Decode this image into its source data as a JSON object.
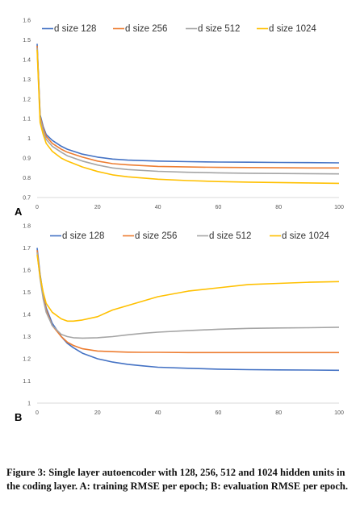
{
  "colors": [
    "#4472C4",
    "#ED7D31",
    "#A5A5A5",
    "#FFC000"
  ],
  "chart_data": [
    {
      "type": "line",
      "panel_label": "A",
      "xlim": [
        0,
        100
      ],
      "ylim": [
        0.7,
        1.6
      ],
      "xticks": [
        0,
        20,
        40,
        60,
        80,
        100
      ],
      "yticks": [
        0.7,
        0.8,
        0.9,
        1,
        1.1,
        1.2,
        1.3,
        1.4,
        1.5,
        1.6
      ],
      "ytick_labels": [
        "0.7",
        "0.8",
        "0.9",
        "1",
        "1.1",
        "1.2",
        "1.3",
        "1.4",
        "1.5",
        "1.6"
      ],
      "grid": false,
      "legend_position": "top",
      "x": [
        0,
        1,
        2,
        3,
        5,
        8,
        10,
        15,
        20,
        25,
        30,
        40,
        50,
        60,
        70,
        80,
        90,
        100
      ],
      "series": [
        {
          "name": "d size 128",
          "values": [
            1.48,
            1.12,
            1.06,
            1.02,
            0.99,
            0.96,
            0.945,
            0.92,
            0.905,
            0.895,
            0.89,
            0.885,
            0.882,
            0.88,
            0.879,
            0.878,
            0.877,
            0.876
          ]
        },
        {
          "name": "d size 256",
          "values": [
            1.47,
            1.11,
            1.05,
            1.01,
            0.975,
            0.945,
            0.93,
            0.905,
            0.885,
            0.872,
            0.866,
            0.858,
            0.855,
            0.853,
            0.852,
            0.851,
            0.85,
            0.85
          ]
        },
        {
          "name": "d size 512",
          "values": [
            1.46,
            1.1,
            1.04,
            0.995,
            0.96,
            0.93,
            0.912,
            0.885,
            0.865,
            0.85,
            0.842,
            0.833,
            0.828,
            0.825,
            0.823,
            0.822,
            0.821,
            0.82
          ]
        },
        {
          "name": "d size 1024",
          "values": [
            1.45,
            1.08,
            1.02,
            0.975,
            0.935,
            0.9,
            0.885,
            0.855,
            0.832,
            0.815,
            0.805,
            0.793,
            0.786,
            0.781,
            0.778,
            0.776,
            0.774,
            0.772
          ]
        }
      ]
    },
    {
      "type": "line",
      "panel_label": "B",
      "xlim": [
        0,
        100
      ],
      "ylim": [
        1.0,
        1.8
      ],
      "xticks": [
        0,
        20,
        40,
        60,
        80,
        100
      ],
      "yticks": [
        1.0,
        1.1,
        1.2,
        1.3,
        1.4,
        1.5,
        1.6,
        1.7,
        1.8
      ],
      "ytick_labels": [
        "1",
        "1.1",
        "1.2",
        "1.3",
        "1.4",
        "1.5",
        "1.6",
        "1.7",
        "1.8"
      ],
      "grid": false,
      "legend_position": "top",
      "x": [
        0,
        1,
        2,
        3,
        5,
        8,
        10,
        12,
        15,
        20,
        25,
        30,
        35,
        40,
        50,
        60,
        70,
        80,
        90,
        100
      ],
      "series": [
        {
          "name": "d size 128",
          "values": [
            1.7,
            1.58,
            1.49,
            1.43,
            1.36,
            1.3,
            1.27,
            1.25,
            1.225,
            1.2,
            1.185,
            1.175,
            1.168,
            1.162,
            1.157,
            1.153,
            1.151,
            1.15,
            1.149,
            1.148
          ]
        },
        {
          "name": "d size 256",
          "values": [
            1.69,
            1.57,
            1.48,
            1.42,
            1.35,
            1.3,
            1.275,
            1.26,
            1.245,
            1.235,
            1.232,
            1.23,
            1.229,
            1.229,
            1.228,
            1.228,
            1.228,
            1.228,
            1.228,
            1.228
          ]
        },
        {
          "name": "d size 512",
          "values": [
            1.68,
            1.56,
            1.47,
            1.41,
            1.35,
            1.31,
            1.3,
            1.295,
            1.293,
            1.295,
            1.3,
            1.308,
            1.315,
            1.32,
            1.327,
            1.333,
            1.337,
            1.339,
            1.34,
            1.342
          ]
        },
        {
          "name": "d size 1024",
          "values": [
            1.67,
            1.57,
            1.5,
            1.45,
            1.41,
            1.38,
            1.37,
            1.37,
            1.375,
            1.39,
            1.42,
            1.44,
            1.46,
            1.48,
            1.505,
            1.52,
            1.535,
            1.54,
            1.545,
            1.548
          ]
        }
      ]
    }
  ],
  "caption": "Figure 3: Single layer autoencoder with 128, 256, 512 and 1024 hidden units in the coding layer. A: training RMSE per epoch; B: evaluation RMSE per epoch."
}
